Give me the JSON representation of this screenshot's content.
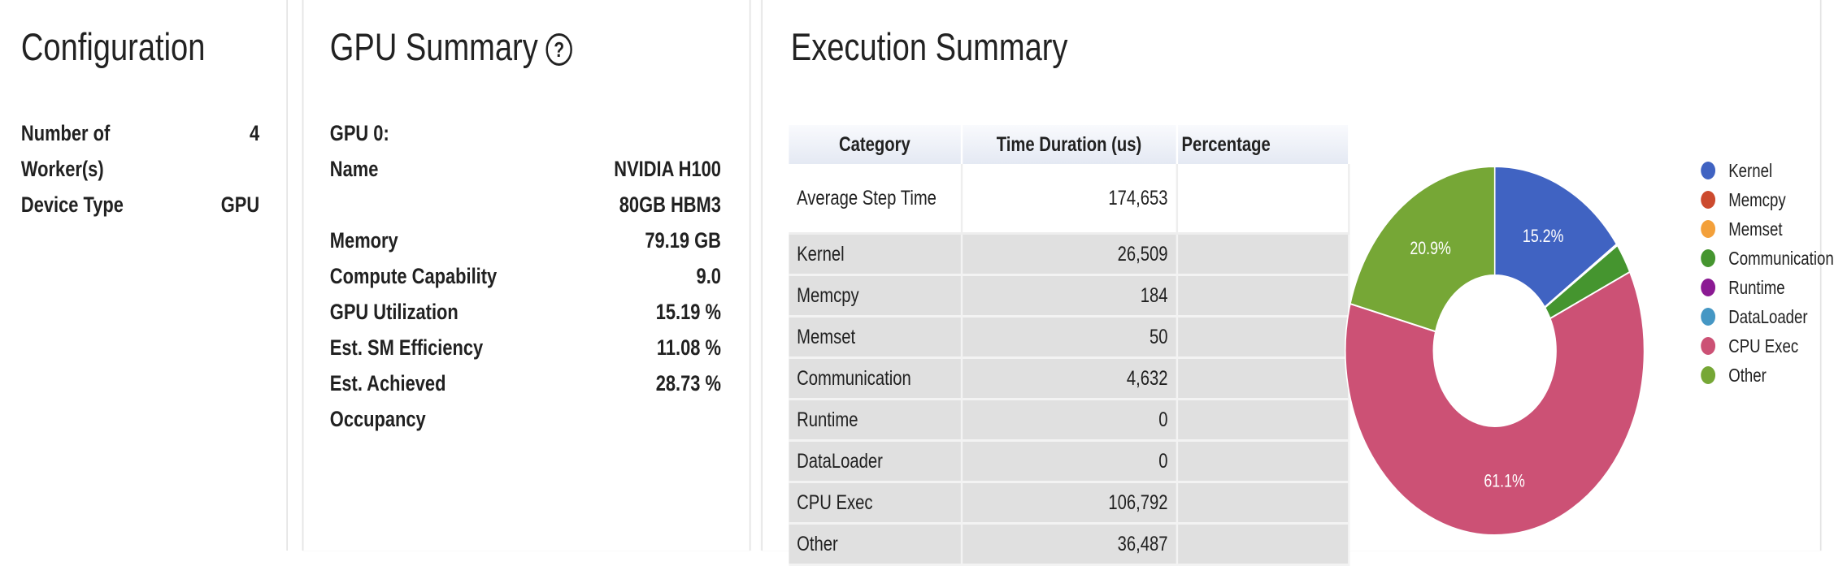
{
  "configuration": {
    "title": "Configuration",
    "rows": [
      {
        "label": "Number of Worker(s)",
        "value": "4"
      },
      {
        "label": "Device Type",
        "value": "GPU"
      }
    ]
  },
  "gpu_summary": {
    "title": "GPU Summary",
    "help_icon": "question-circle-icon",
    "gpu_label": "GPU 0:",
    "rows": [
      {
        "label": "Name",
        "value": "NVIDIA H100 80GB HBM3"
      },
      {
        "label": "Memory",
        "value": "79.19 GB"
      },
      {
        "label": "Compute Capability",
        "value": "9.0"
      },
      {
        "label": "GPU Utilization",
        "value": "15.19 %"
      },
      {
        "label": "Est. SM Efficiency",
        "value": "11.08 %"
      },
      {
        "label": "Est. Achieved Occupancy",
        "value": "28.73 %"
      }
    ]
  },
  "execution_summary": {
    "title": "Execution Summary",
    "table": {
      "headers": [
        "Category",
        "Time Duration (us)",
        "Percentage"
      ],
      "rows": [
        {
          "category": "Average Step Time",
          "duration": "174,653"
        },
        {
          "category": "Kernel",
          "duration": "26,509"
        },
        {
          "category": "Memcpy",
          "duration": "184"
        },
        {
          "category": "Memset",
          "duration": "50"
        },
        {
          "category": "Communication",
          "duration": "4,632"
        },
        {
          "category": "Runtime",
          "duration": "0"
        },
        {
          "category": "DataLoader",
          "duration": "0"
        },
        {
          "category": "CPU Exec",
          "duration": "106,792"
        },
        {
          "category": "Other",
          "duration": "36,487"
        }
      ]
    }
  },
  "chart_data": {
    "type": "pie",
    "donut": true,
    "legend_position": "right",
    "categories": [
      "Kernel",
      "Memcpy",
      "Memset",
      "Communication",
      "Runtime",
      "DataLoader",
      "CPU Exec",
      "Other"
    ],
    "values": [
      26509,
      184,
      50,
      4632,
      0,
      0,
      106792,
      36487
    ],
    "slice_labels": [
      "15.2%",
      "",
      "",
      "",
      "",
      "",
      "61.1%",
      "20.9%"
    ],
    "colors": [
      "#4063c2",
      "#cc4a2e",
      "#f3a03a",
      "#45952f",
      "#8b1a93",
      "#4597c4",
      "#cc5175",
      "#76a736"
    ]
  }
}
